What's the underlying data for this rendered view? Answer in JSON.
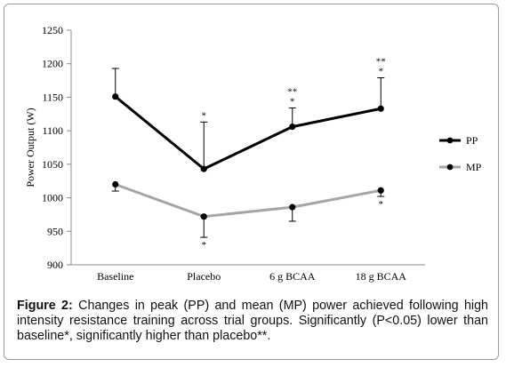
{
  "caption": {
    "label": "Figure 2:",
    "text": " Changes in peak (PP) and mean (MP) power achieved following high intensity resistance training across trial groups. Significantly (P<0.05) lower than baseline*, significantly higher than placebo**."
  },
  "chart_data": {
    "type": "line",
    "categories": [
      "Baseline",
      "Placebo",
      "6 g BCAA",
      "18 g BCAA"
    ],
    "ylabel": "Power Output (W)",
    "xlabel": "",
    "ylim": [
      900,
      1250
    ],
    "yticks": [
      900,
      950,
      1000,
      1050,
      1100,
      1150,
      1200,
      1250
    ],
    "grid": false,
    "legend_position": "right",
    "series": [
      {
        "name": "PP",
        "color": "#000000",
        "values": [
          1151,
          1043,
          1106,
          1133
        ],
        "error_up": [
          42,
          70,
          28,
          46
        ],
        "error_down": [
          0,
          0,
          0,
          0
        ],
        "annotations": [
          [],
          [
            "*"
          ],
          [
            "**",
            "*"
          ],
          [
            "**",
            "*"
          ]
        ]
      },
      {
        "name": "MP",
        "color": "#a6a6a6",
        "values": [
          1020,
          972,
          986,
          1011
        ],
        "error_up": [
          0,
          0,
          0,
          0
        ],
        "error_down": [
          10,
          31,
          21,
          9
        ],
        "annotations": [
          [],
          [
            "*"
          ],
          [],
          [
            "*"
          ]
        ]
      }
    ]
  }
}
